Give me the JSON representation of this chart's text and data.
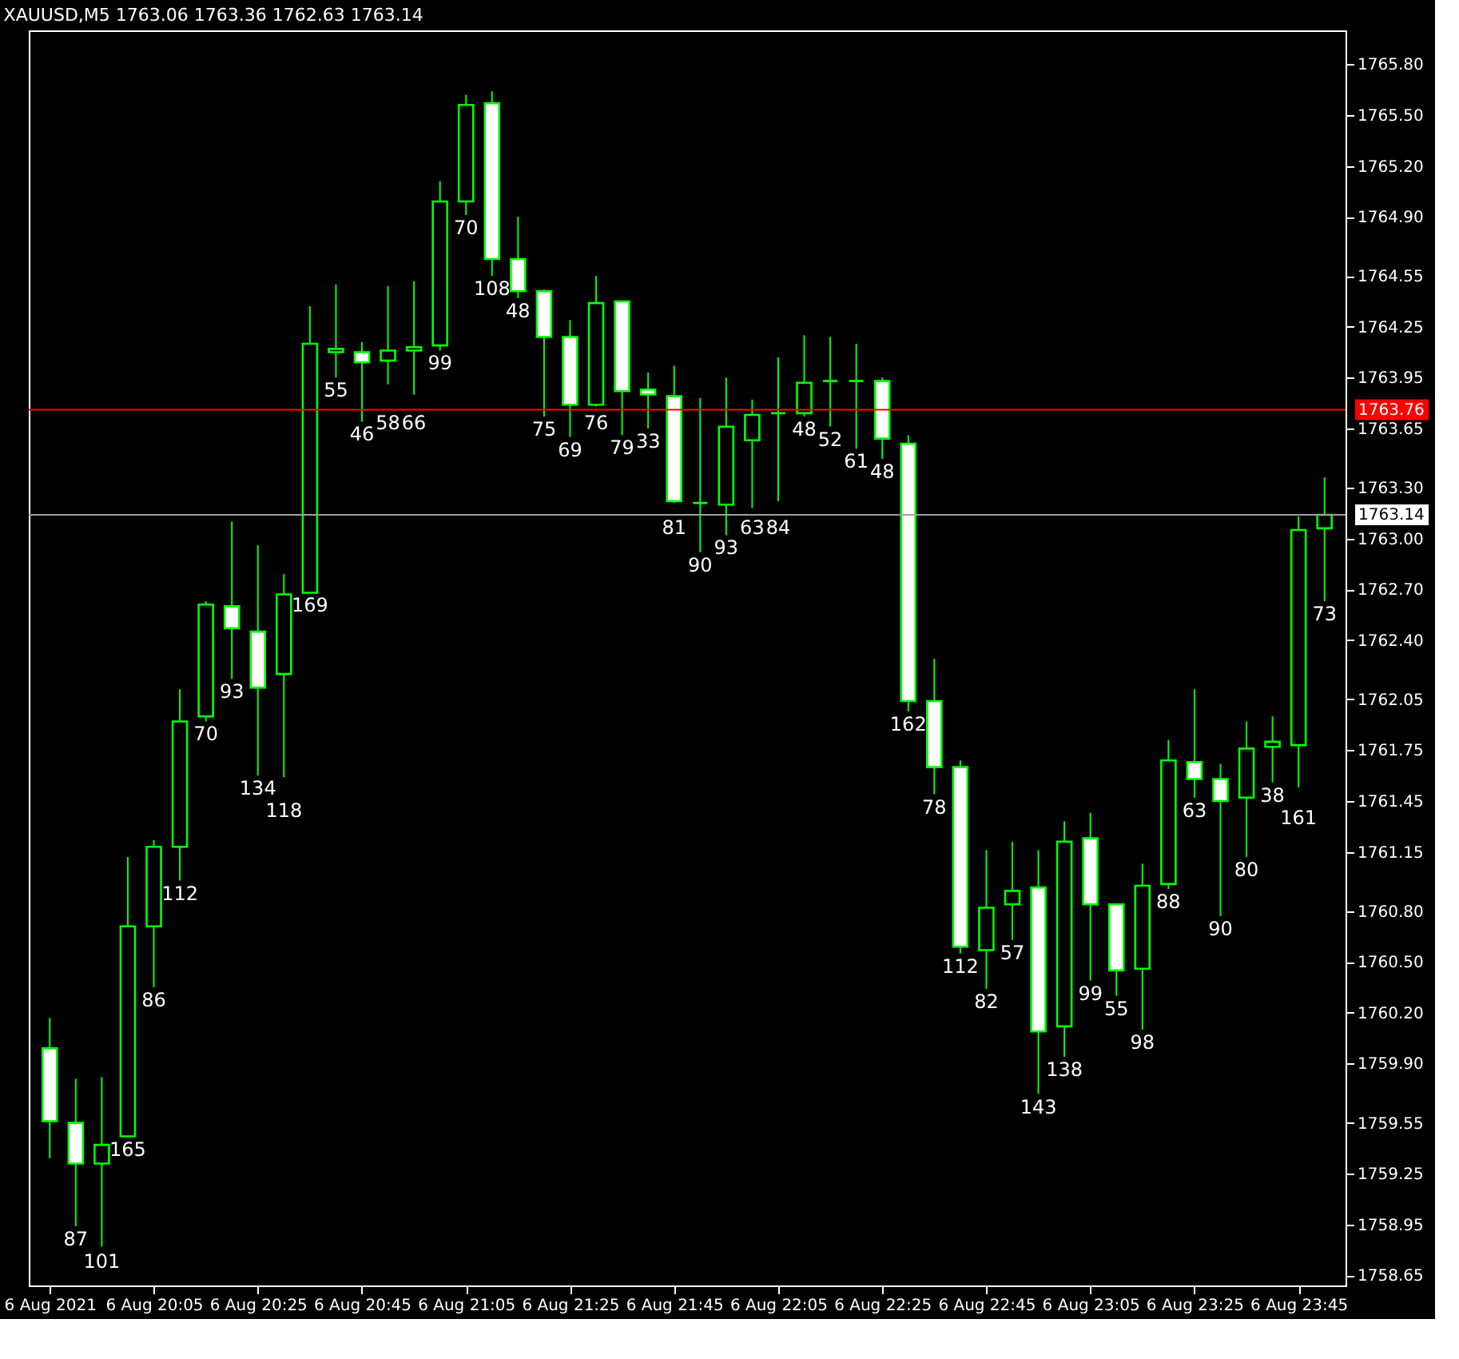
{
  "chart_data": {
    "type": "candlestick",
    "title": "XAUUSD,M5  1763.06 1763.36 1762.63 1763.14",
    "categories": [
      "6 Aug 2021",
      null,
      null,
      null,
      "6 Aug 20:05",
      null,
      null,
      null,
      "6 Aug 20:25",
      null,
      null,
      null,
      "6 Aug 20:45",
      null,
      null,
      null,
      "6 Aug 21:05",
      null,
      null,
      null,
      "6 Aug 21:25",
      null,
      null,
      null,
      "6 Aug 21:45",
      null,
      null,
      null,
      "6 Aug 22:05",
      null,
      null,
      null,
      "6 Aug 22:25",
      null,
      null,
      null,
      "6 Aug 22:45",
      null,
      null,
      null,
      "6 Aug 23:05",
      null,
      null,
      null,
      "6 Aug 23:25",
      null,
      null,
      null,
      "6 Aug 23:45",
      null
    ],
    "ohlc": [
      [
        1759.99,
        1760.17,
        1759.34,
        1759.56
      ],
      [
        1759.55,
        1759.81,
        1758.94,
        1759.31
      ],
      [
        1759.31,
        1759.82,
        1758.82,
        1759.42
      ],
      [
        1759.47,
        1761.12,
        1759.47,
        1760.71
      ],
      [
        1760.71,
        1761.22,
        1760.35,
        1761.18
      ],
      [
        1761.18,
        1762.11,
        1760.98,
        1761.92
      ],
      [
        1761.95,
        1762.63,
        1761.92,
        1762.61
      ],
      [
        1762.6,
        1763.1,
        1762.17,
        1762.47
      ],
      [
        1762.45,
        1762.96,
        1761.6,
        1762.12
      ],
      [
        1762.2,
        1762.79,
        1761.59,
        1762.67
      ],
      [
        1762.68,
        1764.37,
        1762.68,
        1764.15
      ],
      [
        1764.1,
        1764.5,
        1763.95,
        1764.12
      ],
      [
        1764.1,
        1764.16,
        1763.69,
        1764.04
      ],
      [
        1764.05,
        1764.49,
        1763.91,
        1764.11
      ],
      [
        1764.11,
        1764.52,
        1763.85,
        1764.13
      ],
      [
        1764.14,
        1765.11,
        1764.11,
        1764.99
      ],
      [
        1764.99,
        1765.62,
        1764.91,
        1765.56
      ],
      [
        1765.57,
        1765.64,
        1764.55,
        1764.65
      ],
      [
        1764.65,
        1764.9,
        1764.42,
        1764.46
      ],
      [
        1764.46,
        1764.47,
        1763.72,
        1764.19
      ],
      [
        1764.19,
        1764.29,
        1763.6,
        1763.79
      ],
      [
        1763.79,
        1764.55,
        1763.78,
        1764.39
      ],
      [
        1764.4,
        1764.4,
        1763.61,
        1763.87
      ],
      [
        1763.88,
        1763.98,
        1763.65,
        1763.85
      ],
      [
        1763.84,
        1764.02,
        1763.21,
        1763.22
      ],
      [
        1763.21,
        1763.83,
        1762.92,
        1763.21
      ],
      [
        1763.2,
        1763.95,
        1763.02,
        1763.66
      ],
      [
        1763.58,
        1763.82,
        1763.18,
        1763.73
      ],
      [
        1763.74,
        1764.07,
        1763.22,
        1763.74
      ],
      [
        1763.74,
        1764.2,
        1763.72,
        1763.92
      ],
      [
        1763.93,
        1764.19,
        1763.66,
        1763.93
      ],
      [
        1763.93,
        1764.15,
        1763.53,
        1763.93
      ],
      [
        1763.93,
        1763.95,
        1763.47,
        1763.59
      ],
      [
        1763.56,
        1763.61,
        1761.98,
        1762.04
      ],
      [
        1762.04,
        1762.29,
        1761.49,
        1761.65
      ],
      [
        1761.65,
        1761.69,
        1760.55,
        1760.59
      ],
      [
        1760.57,
        1761.16,
        1760.34,
        1760.82
      ],
      [
        1760.84,
        1761.21,
        1760.63,
        1760.92
      ],
      [
        1760.94,
        1761.16,
        1759.72,
        1760.09
      ],
      [
        1760.12,
        1761.33,
        1759.94,
        1761.21
      ],
      [
        1761.23,
        1761.38,
        1760.39,
        1760.84
      ],
      [
        1760.84,
        1760.84,
        1760.3,
        1760.45
      ],
      [
        1760.46,
        1761.08,
        1760.1,
        1760.95
      ],
      [
        1760.96,
        1761.81,
        1760.93,
        1761.69
      ],
      [
        1761.68,
        1762.11,
        1761.47,
        1761.58
      ],
      [
        1761.58,
        1761.67,
        1760.77,
        1761.45
      ],
      [
        1761.47,
        1761.92,
        1761.12,
        1761.76
      ],
      [
        1761.77,
        1761.95,
        1761.56,
        1761.8
      ],
      [
        1761.78,
        1763.13,
        1761.53,
        1763.05
      ],
      [
        1763.06,
        1763.36,
        1762.63,
        1763.14
      ]
    ],
    "value_labels": [
      null,
      "87",
      "101",
      "165",
      "86",
      "112",
      "70",
      "93",
      "134",
      "118",
      "169",
      "55",
      "46",
      "58",
      "66",
      "99",
      "70",
      "108",
      "48",
      "75",
      "69",
      "76",
      "79",
      "33",
      "81",
      "90",
      "93",
      "63",
      "84",
      "48",
      "52",
      "61",
      "48",
      "162",
      "78",
      "112",
      "82",
      "57",
      "143",
      "138",
      "99",
      "55",
      "98",
      "88",
      "63",
      "90",
      "80",
      "38",
      "161",
      "73"
    ],
    "color": "#00ff00",
    "ylim": [
      1758.59,
      1766.0
    ],
    "yticks": [
      {
        "value": 1758.65,
        "label": "1758.65"
      },
      {
        "value": 1758.95,
        "label": "1758.95"
      },
      {
        "value": 1759.25,
        "label": "1759.25"
      },
      {
        "value": 1759.55,
        "label": "1759.55"
      },
      {
        "value": 1759.9,
        "label": "1759.90"
      },
      {
        "value": 1760.2,
        "label": "1760.20"
      },
      {
        "value": 1760.5,
        "label": "1760.50"
      },
      {
        "value": 1760.8,
        "label": "1760.80"
      },
      {
        "value": 1761.15,
        "label": "1761.15"
      },
      {
        "value": 1761.45,
        "label": "1761.45"
      },
      {
        "value": 1761.75,
        "label": "1761.75"
      },
      {
        "value": 1762.05,
        "label": "1762.05"
      },
      {
        "value": 1762.4,
        "label": "1762.40"
      },
      {
        "value": 1762.7,
        "label": "1762.70"
      },
      {
        "value": 1763.0,
        "label": "1763.00"
      },
      {
        "value": 1763.3,
        "label": "1763.30"
      },
      {
        "value": 1763.65,
        "label": "1763.65"
      },
      {
        "value": 1763.95,
        "label": "1763.95"
      },
      {
        "value": 1764.25,
        "label": "1764.25"
      },
      {
        "value": 1764.55,
        "label": "1764.55"
      },
      {
        "value": 1764.9,
        "label": "1764.90"
      },
      {
        "value": 1765.2,
        "label": "1765.20"
      },
      {
        "value": 1765.5,
        "label": "1765.50"
      },
      {
        "value": 1765.8,
        "label": "1765.80"
      }
    ],
    "ref_lines": [
      {
        "axis": "y",
        "value": 1763.76,
        "label": "1763.76",
        "color": "#ff0000"
      },
      {
        "axis": "y",
        "value": 1763.14,
        "label": "1763.14",
        "color": "#a0a0a0"
      }
    ],
    "grid": false
  }
}
